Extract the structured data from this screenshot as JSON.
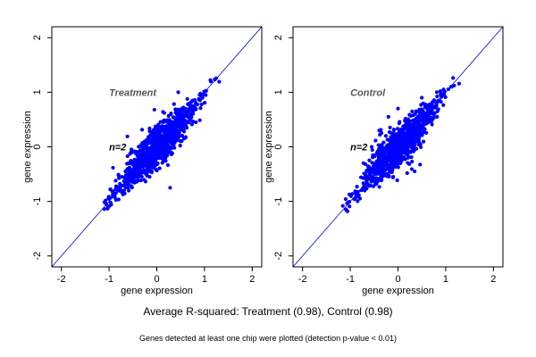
{
  "chart_data": [
    {
      "type": "scatter",
      "panel": "left",
      "title": "",
      "annotation_label": "Treatment",
      "annotation_n": "n=2",
      "xlabel": "gene expression",
      "ylabel": "gene expression",
      "xlim": [
        -2.2,
        2.2
      ],
      "ylim": [
        -2.2,
        2.2
      ],
      "xticks": [
        -2,
        -1,
        0,
        1,
        2
      ],
      "yticks": [
        -2,
        -1,
        0,
        1,
        2
      ],
      "diagonal": {
        "from": [
          -2.2,
          -2.2
        ],
        "to": [
          2.2,
          2.2
        ]
      },
      "series": [
        {
          "color": "#0000ff",
          "distribution": {
            "type": "elongated-cloud",
            "along_diagonal_range": [
              -1.12,
              1.25
            ],
            "spread": 0.11,
            "num_points": 900
          },
          "outliers": [
            [
              -0.38,
              0.0
            ],
            [
              -0.15,
              -0.55
            ],
            [
              0.28,
              -0.75
            ],
            [
              0.82,
              0.45
            ],
            [
              -0.05,
              0.68
            ],
            [
              0.45,
              1.0
            ],
            [
              -0.52,
              -0.1
            ]
          ]
        }
      ]
    },
    {
      "type": "scatter",
      "panel": "right",
      "title": "",
      "annotation_label": "Control",
      "annotation_n": "n=2",
      "xlabel": "gene expression",
      "ylabel": "gene expression",
      "xlim": [
        -2.2,
        2.2
      ],
      "ylim": [
        -2.2,
        2.2
      ],
      "xticks": [
        -2,
        -1,
        0,
        1,
        2
      ],
      "yticks": [
        -2,
        -1,
        0,
        1,
        2
      ],
      "diagonal": {
        "from": [
          -2.2,
          -2.2
        ],
        "to": [
          2.2,
          2.2
        ]
      },
      "series": [
        {
          "color": "#0000ff",
          "distribution": {
            "type": "elongated-cloud",
            "along_diagonal_range": [
              -1.12,
              1.22
            ],
            "spread": 0.11,
            "num_points": 900
          },
          "outliers": [
            [
              -0.38,
              0.22
            ],
            [
              -0.1,
              -0.55
            ],
            [
              0.35,
              -0.45
            ],
            [
              0.82,
              0.55
            ],
            [
              0.0,
              0.7
            ],
            [
              0.5,
              0.9
            ],
            [
              -0.55,
              0.0
            ],
            [
              -0.2,
              0.55
            ]
          ]
        }
      ]
    }
  ],
  "caption": {
    "main": "Average R-squared: Treatment (0.98), Control (0.98)",
    "sub": "Genes detected at least one chip were plotted (detection p-value < 0.01)"
  }
}
